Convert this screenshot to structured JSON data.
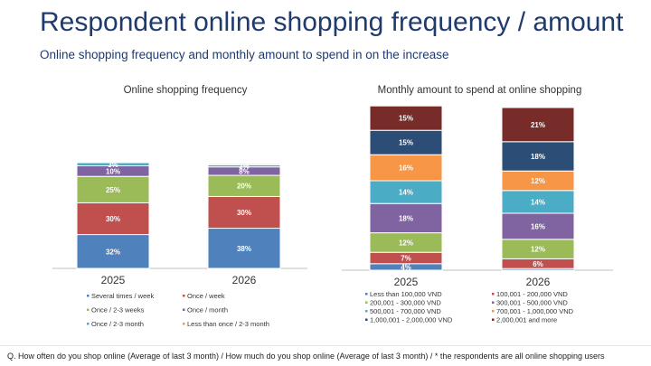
{
  "title": "Respondent online shopping frequency / amount",
  "subtitle": "Online shopping frequency and monthly amount to spend in on the increase",
  "footnote": "Q. How often do you shop online (Average of last 3 month) / How much do you shop online (Average of last 3 month) / * the respondents are all online shopping users",
  "chart_data": [
    {
      "type": "bar",
      "stacked": true,
      "title": "Online shopping frequency",
      "categories": [
        "2025",
        "2026"
      ],
      "series": [
        {
          "name": "Several times / week",
          "color": "#4f81bd",
          "values": [
            32,
            38
          ],
          "labels": [
            "32%",
            "38%"
          ]
        },
        {
          "name": "Once / week",
          "color": "#c0504d",
          "values": [
            30,
            30
          ],
          "labels": [
            "30%",
            "30%"
          ]
        },
        {
          "name": "Once / 2-3 weeks",
          "color": "#9bbb59",
          "values": [
            25,
            20
          ],
          "labels": [
            "25%",
            "20%"
          ]
        },
        {
          "name": "Once / month",
          "color": "#8064a2",
          "values": [
            10,
            8
          ],
          "labels": [
            "10%",
            "8%"
          ]
        },
        {
          "name": "Once / 2-3 month",
          "color": "#4bacc6",
          "values": [
            3,
            2
          ],
          "labels": [
            "3%",
            "2%"
          ]
        },
        {
          "name": "Less than once / 2-3 month",
          "color": "#f79646",
          "values": [
            0,
            1
          ],
          "labels": [
            "",
            ""
          ]
        }
      ],
      "legend": "bottom"
    },
    {
      "type": "bar",
      "stacked": true,
      "title": "Monthly amount to spend at online shopping",
      "categories": [
        "2025",
        "2026"
      ],
      "series": [
        {
          "name": "Less than 100,000 VND",
          "color": "#4f81bd",
          "values": [
            4,
            1
          ],
          "labels": [
            "4%",
            ""
          ]
        },
        {
          "name": "100,001 - 200,000 VND",
          "color": "#c0504d",
          "values": [
            7,
            6
          ],
          "labels": [
            "7%",
            "6%"
          ]
        },
        {
          "name": "200,001 - 300,000 VND",
          "color": "#9bbb59",
          "values": [
            12,
            12
          ],
          "labels": [
            "12%",
            "12%"
          ]
        },
        {
          "name": "300,001 - 500,000 VND",
          "color": "#8064a2",
          "values": [
            18,
            16
          ],
          "labels": [
            "18%",
            "16%"
          ]
        },
        {
          "name": "500,001 - 700,000 VND",
          "color": "#4bacc6",
          "values": [
            14,
            14
          ],
          "labels": [
            "14%",
            "14%"
          ]
        },
        {
          "name": "700,001 - 1,000,000 VND",
          "color": "#f79646",
          "values": [
            16,
            12
          ],
          "labels": [
            "16%",
            "12%"
          ]
        },
        {
          "name": "1,000,001 - 2,000,000 VND",
          "color": "#2c4d75",
          "values": [
            15,
            18
          ],
          "labels": [
            "15%",
            "18%"
          ]
        },
        {
          "name": "2,000,001 and more",
          "color": "#772c2a",
          "values": [
            15,
            21
          ],
          "labels": [
            "15%",
            "21%"
          ]
        }
      ],
      "legend": "bottom"
    }
  ]
}
